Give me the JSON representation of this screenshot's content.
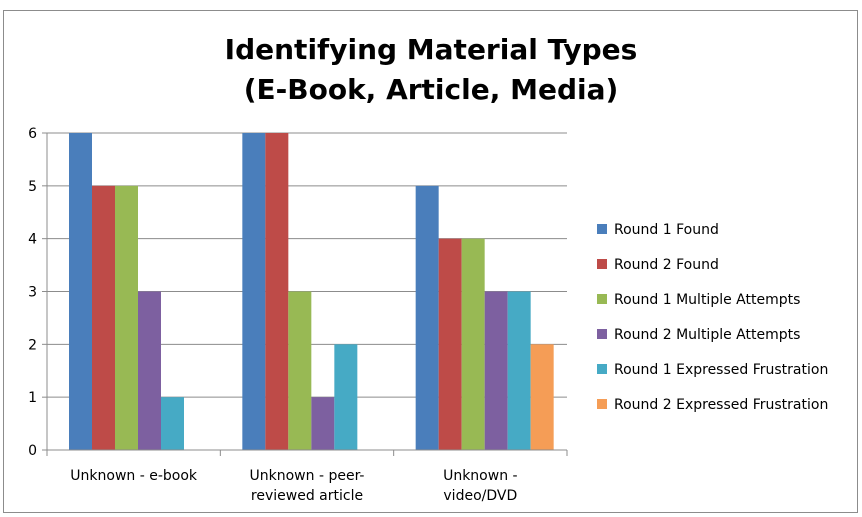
{
  "chart_data": {
    "type": "bar",
    "title_lines": [
      "Identifying Material Types",
      "(E-Book, Article, Media)"
    ],
    "categories": [
      [
        "Unknown - e-book"
      ],
      [
        "Unknown - peer-",
        "reviewed article"
      ],
      [
        "Unknown -",
        "video/DVD"
      ]
    ],
    "ylim": [
      0,
      6
    ],
    "yticks": [
      0,
      1,
      2,
      3,
      4,
      5,
      6
    ],
    "grid": true,
    "legend_position": "right",
    "series": [
      {
        "name": "Round 1 Found",
        "color": "#4a7ebb",
        "values": [
          6,
          6,
          5
        ]
      },
      {
        "name": "Round 2 Found",
        "color": "#be4b48",
        "values": [
          5,
          6,
          4
        ]
      },
      {
        "name": "Round 1 Multiple Attempts",
        "color": "#98b954",
        "values": [
          5,
          3,
          4
        ]
      },
      {
        "name": "Round 2 Multiple Attempts",
        "color": "#7d60a0",
        "values": [
          3,
          1,
          3
        ]
      },
      {
        "name": "Round 1 Expressed Frustration",
        "color": "#46aac5",
        "values": [
          1,
          2,
          3
        ]
      },
      {
        "name": "Round 2 Expressed Frustration",
        "color": "#f59d56",
        "values": [
          0,
          0,
          2
        ]
      }
    ]
  }
}
